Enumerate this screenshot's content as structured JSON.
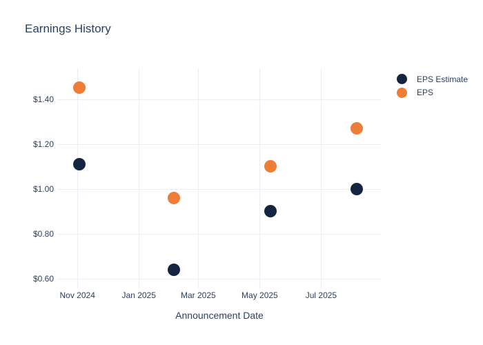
{
  "title": "Earnings History",
  "x_axis_title": "Announcement Date",
  "colors": {
    "background": "#ffffff",
    "gridline": "#e9eef6",
    "text": "#2a3f5f",
    "eps_estimate": "#152440",
    "eps": "#ee7d35"
  },
  "legend": {
    "items": [
      {
        "label": "EPS Estimate",
        "color": "#152440"
      },
      {
        "label": "EPS",
        "color": "#ee7d35"
      }
    ]
  },
  "chart_data": {
    "type": "scatter",
    "title": "Earnings History",
    "xlabel": "Announcement Date",
    "ylabel": "",
    "grid": true,
    "legend_position": "outside-top-right",
    "x_tick_labels": [
      "Nov 2024",
      "Jan 2025",
      "Mar 2025",
      "May 2025",
      "Jul 2025"
    ],
    "x_tick_dates": [
      "2024-11-01",
      "2025-01-01",
      "2025-03-01",
      "2025-05-01",
      "2025-07-01"
    ],
    "xlim_dates": [
      "2024-10-12",
      "2025-08-30"
    ],
    "y_tick_labels": [
      "$1.40",
      "$1.20",
      "$1.00",
      "$0.80",
      "$0.60"
    ],
    "y_tick_values": [
      1.4,
      1.2,
      1.0,
      0.8,
      0.6
    ],
    "ylim": [
      0.571,
      1.537
    ],
    "series": [
      {
        "name": "EPS Estimate",
        "color": "#152440",
        "x": [
          "2024-11-03",
          "2025-02-05",
          "2025-05-12",
          "2025-08-05"
        ],
        "y": [
          1.11,
          0.64,
          0.9,
          1.0
        ]
      },
      {
        "name": "EPS",
        "color": "#ee7d35",
        "x": [
          "2024-11-03",
          "2025-02-05",
          "2025-05-12",
          "2025-08-05"
        ],
        "y": [
          1.45,
          0.96,
          1.1,
          1.27
        ]
      }
    ]
  }
}
